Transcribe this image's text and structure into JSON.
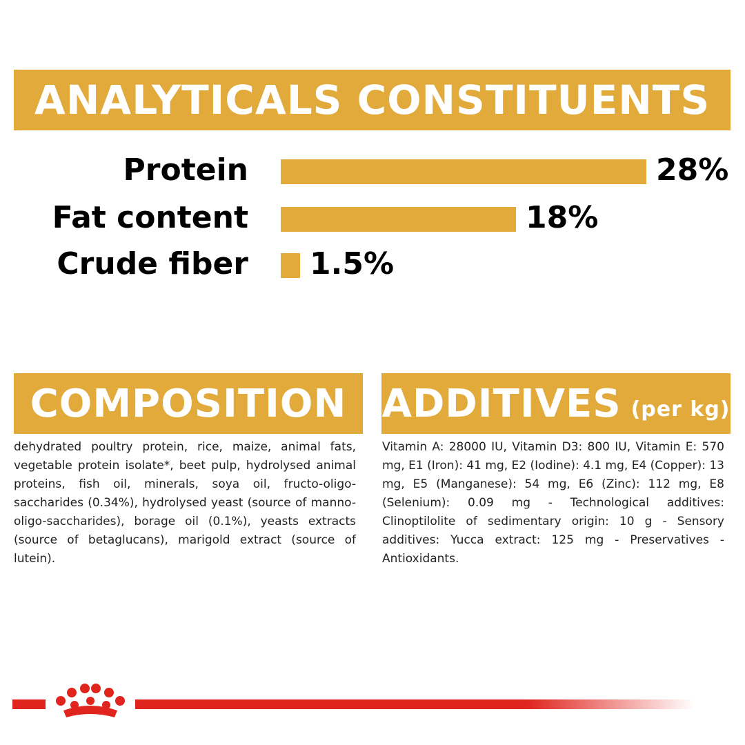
{
  "analyticals": {
    "title": "ANALYTICALS CONSTITUENTS",
    "rows": [
      {
        "label": "Protein",
        "value": "28%",
        "percent": 28
      },
      {
        "label": "Fat content",
        "value": "18%",
        "percent": 18
      },
      {
        "label": "Crude fiber",
        "value": "1.5%",
        "percent": 1.5
      }
    ]
  },
  "composition": {
    "title": "COMPOSITION",
    "text": "dehydrated poultry protein, rice, maize, animal fats, vegetable protein isolate*, beet pulp, hydrolysed animal proteins, fish oil, minerals, soya oil, fructo-oligo-saccharides (0.34%), hydrolysed yeast (source of manno-oligo-saccharides), borage oil (0.1%), yeasts extracts (source of betaglucans), marigold extract (source of lutein)."
  },
  "additives": {
    "title": "ADDITIVES",
    "unit": "(per kg)",
    "text": "Vitamin A: 28000 IU, Vitamin D3: 800 IU, Vitamin E: 570 mg, E1 (Iron): 41 mg, E2 (Iodine): 4.1 mg, E4 (Copper): 13 mg, E5 (Manganese): 54 mg, E6 (Zinc): 112 mg, E8 (Selenium): 0.09 mg - Technological additives: Clinoptilolite of sedimentary origin: 10 g - Sensory additives: Yucca extract: 125 mg - Preservatives - Antioxidants."
  },
  "colors": {
    "accent": "#e2a93b",
    "brand_red": "#e0241e"
  },
  "footer": {
    "logo_icon": "royal-canin-crown-icon"
  }
}
